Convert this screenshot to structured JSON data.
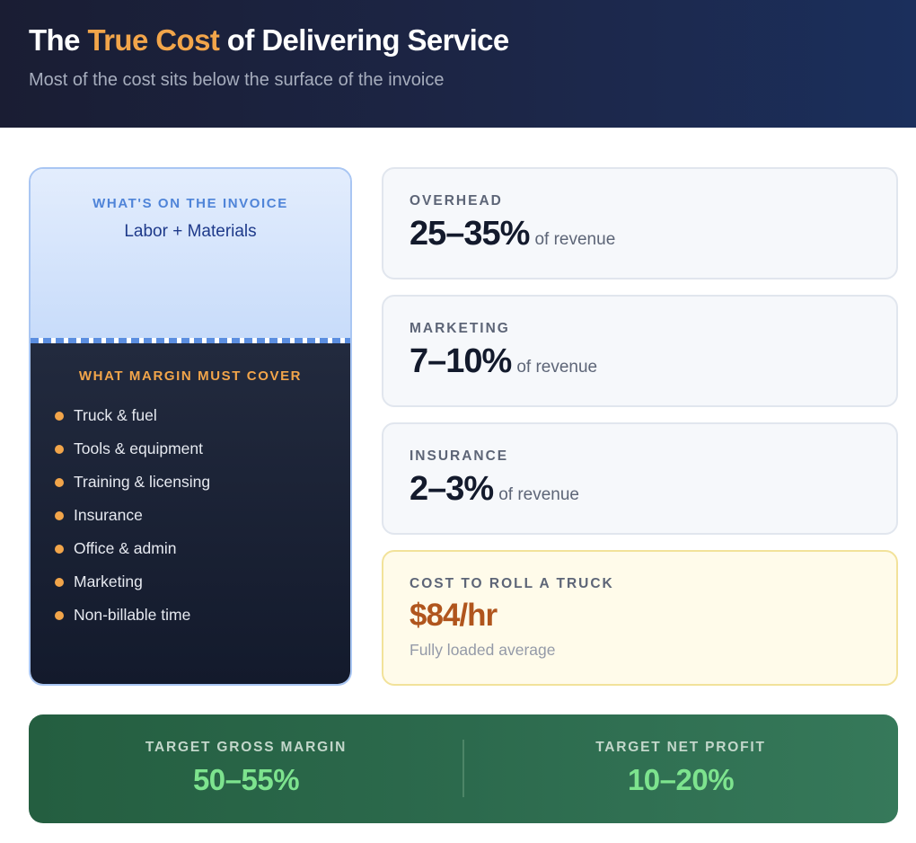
{
  "header": {
    "title_prefix": "The ",
    "title_accent": "True Cost",
    "title_suffix": " of Delivering Service",
    "subtitle": "Most of the cost sits below the surface of the invoice"
  },
  "iceberg": {
    "top_label": "WHAT'S ON THE INVOICE",
    "top_value": "Labor + Materials",
    "bottom_label": "WHAT MARGIN MUST COVER",
    "items": [
      "Truck & fuel",
      "Tools & equipment",
      "Training & licensing",
      "Insurance",
      "Office & admin",
      "Marketing",
      "Non-billable time"
    ]
  },
  "stats": [
    {
      "label": "OVERHEAD",
      "value": "25–35%",
      "unit": "of revenue"
    },
    {
      "label": "MARKETING",
      "value": "7–10%",
      "unit": "of revenue"
    },
    {
      "label": "INSURANCE",
      "value": "2–3%",
      "unit": "of revenue"
    }
  ],
  "truck_cost": {
    "label": "COST TO ROLL A TRUCK",
    "value": "$84/hr",
    "note": "Fully loaded average"
  },
  "targets": {
    "gross_label": "TARGET GROSS MARGIN",
    "gross_value": "50–55%",
    "net_label": "TARGET NET PROFIT",
    "net_value": "10–20%"
  },
  "colors": {
    "accent": "#f2a54a",
    "header_bg": "#1c2647",
    "invoice_blue": "#c8dcfa",
    "margin_dark": "#1a2236",
    "truck_value": "#b0551d",
    "target_green": "#2c6a4d",
    "target_value": "#7de38e"
  }
}
